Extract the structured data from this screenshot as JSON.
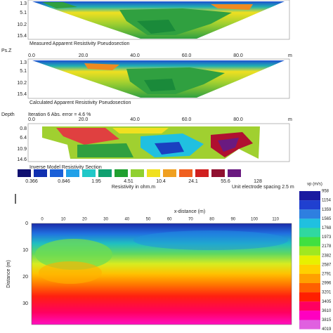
{
  "measured": {
    "y_labels": [
      "1.3",
      "5.1",
      "10.2",
      "15.4"
    ],
    "caption": "Measured Apparent Resistivity Pseudosection"
  },
  "axis_1": {
    "label": "Ps.Z",
    "ticks": [
      "0.0",
      "20.0",
      "40.0",
      "60.0",
      "80.0"
    ],
    "unit": "m"
  },
  "calculated": {
    "y_labels": [
      "1.3",
      "5.1",
      "10.2",
      "15.4"
    ],
    "caption": "Calculated Apparent Resistivity Pseudosection"
  },
  "axis_2": {
    "label": "Depth",
    "note": "Iteration 6 Abs. error = 4.6 %",
    "ticks": [
      "0.0",
      "20.0",
      "40.0",
      "60.0",
      "80.0"
    ],
    "unit": "m"
  },
  "inverse": {
    "y_labels": [
      "0.8",
      "6.4",
      "10.9",
      "14.6"
    ],
    "caption": "Inverse Model Resistivity Section"
  },
  "resistivity_legend": {
    "labels": [
      "0.366",
      "0.846",
      "1.95",
      "4.51",
      "10.4",
      "24.1",
      "55.6",
      "128"
    ],
    "title": "Resistivity in ohm.m",
    "spacing": "Unit electrode spacing 2.5 m"
  },
  "seismic": {
    "x_title": "x-distance (m)",
    "x_ticks": [
      "0",
      "10",
      "20",
      "30",
      "40",
      "50",
      "60",
      "70",
      "80",
      "90",
      "100",
      "110"
    ],
    "y_title": "Distance (m)",
    "y_ticks": [
      "0",
      "10",
      "20",
      "30"
    ],
    "colorbar_title": "vp (m/s)",
    "colorbar_labels": [
      "958",
      "1154",
      "1359",
      "1565",
      "1768",
      "1973",
      "2178",
      "2382",
      "2587",
      "2791",
      "2996",
      "3201",
      "3405",
      "3610",
      "3815",
      "4019"
    ]
  }
}
